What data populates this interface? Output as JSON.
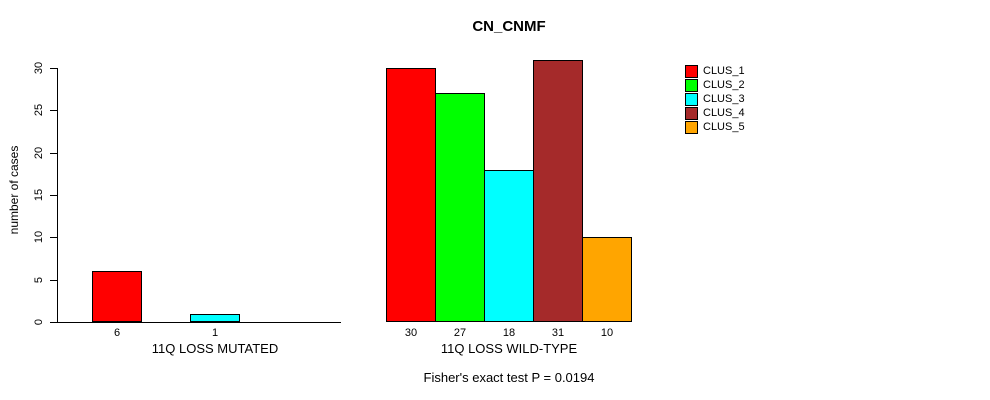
{
  "chart_data": {
    "type": "bar",
    "title": "CN_CNMF",
    "xlabel": "",
    "ylabel": "number of cases",
    "ylim": [
      0,
      30
    ],
    "yticks": [
      0,
      5,
      10,
      15,
      20,
      25,
      30
    ],
    "grid": false,
    "legend_position": "top-right",
    "caption": "Fisher's exact test P = 0.0194",
    "categories": [
      "11Q LOSS MUTATED",
      "11Q LOSS WILD-TYPE"
    ],
    "series": [
      {
        "name": "CLUS_1",
        "color": "#FF0000",
        "values": [
          6,
          30
        ]
      },
      {
        "name": "CLUS_2",
        "color": "#00FF00",
        "values": [
          0,
          27
        ]
      },
      {
        "name": "CLUS_3",
        "color": "#00FFFF",
        "values": [
          1,
          18
        ]
      },
      {
        "name": "CLUS_4",
        "color": "#A52A2A",
        "values": [
          0,
          31
        ]
      },
      {
        "name": "CLUS_5",
        "color": "#FFA500",
        "values": [
          0,
          10
        ]
      }
    ],
    "bar_value_labels_shown_only_if_nonzero": true,
    "colors": {
      "axis": "#000000",
      "text": "#000000",
      "background": "#FFFFFF"
    }
  }
}
